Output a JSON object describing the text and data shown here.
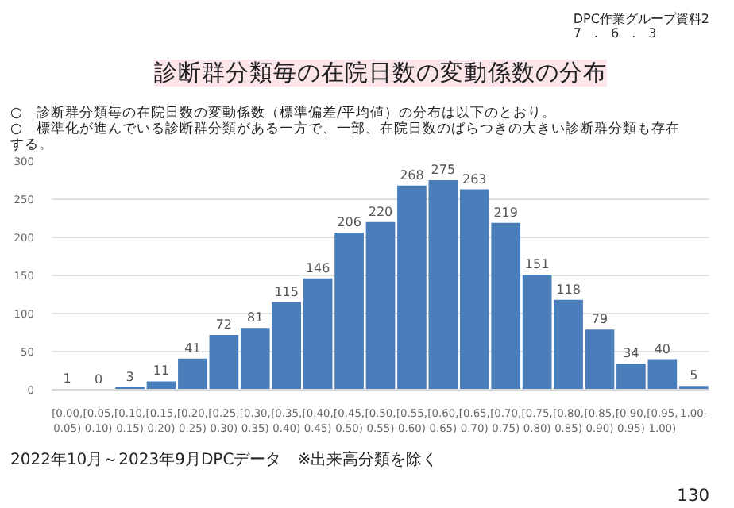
{
  "chart_data": {
    "type": "bar",
    "title": "診断群分類毎の在院日数の変動係数の分布",
    "subtitle": "○　診断群分類毎の在院日数の変動係数（標準偏差/平均値）の分布は以下のとおり。\n○　標準化が進んでいる診断群分類がある一方で、一部、在院日数のばらつきの大きい診断群分類も存在する。",
    "categories": [
      "[0.00,\n0.05)",
      "[0.05,\n0.10)",
      "[0.10,\n0.15)",
      "[0.15,\n0.20)",
      "[0.20,\n0.25)",
      "[0.25,\n0.30)",
      "[0.30,\n0.35)",
      "[0.35,\n0.40)",
      "[0.40,\n0.45)",
      "[0.45,\n0.50)",
      "[0.50,\n0.55)",
      "[0.55,\n0.60)",
      "[0.60,\n0.65)",
      "[0.65,\n0.70)",
      "[0.70,\n0.75)",
      "[0.75,\n0.80)",
      "[0.80,\n0.85)",
      "[0.85,\n0.90)",
      "[0.90,\n0.95)",
      "[0.95,\n1.00)",
      "1.00-"
    ],
    "values": [
      1,
      0,
      3,
      11,
      41,
      72,
      81,
      115,
      146,
      206,
      220,
      268,
      275,
      263,
      219,
      151,
      118,
      79,
      34,
      40,
      5
    ],
    "color": "#4a7ebb",
    "ylim": [
      0,
      300
    ],
    "yticks": [
      0,
      50,
      100,
      150,
      200,
      250,
      300
    ],
    "grid": "y",
    "data_labels": true,
    "annotations": [
      "DPC作業グループ資料2\n7　.　6　.　3",
      "2022年10月～2023年9月DPCデータ　※出来高分類を除く",
      "130"
    ]
  }
}
